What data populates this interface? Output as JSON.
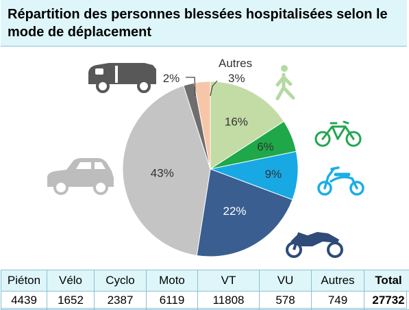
{
  "title": "Répartition des personnes blessées hospitalisées selon le mode de déplacement",
  "chart_data": {
    "type": "pie",
    "start_angle_deg": 0,
    "slices": [
      {
        "category": "Piéton",
        "value": 16,
        "label": "16%",
        "color": "#c3dca5"
      },
      {
        "category": "Vélo",
        "value": 6,
        "label": "6%",
        "color": "#1ea84a"
      },
      {
        "category": "Cyclo",
        "value": 9,
        "label": "9%",
        "color": "#18a8e4"
      },
      {
        "category": "Moto",
        "value": 22,
        "label": "22%",
        "color": "#3a5e8f"
      },
      {
        "category": "VT",
        "value": 43,
        "label": "43%",
        "color": "#c4c4c4"
      },
      {
        "category": "VU",
        "value": 2,
        "label": "2%",
        "color": "#6e6e6e"
      },
      {
        "category": "Autres",
        "value": 3,
        "label": "3%",
        "color": "#f7c6a8"
      }
    ],
    "annotations": {
      "autres_name": "Autres"
    }
  },
  "table": {
    "headers": [
      "Piéton",
      "Vélo",
      "Cyclo",
      "Moto",
      "VT",
      "VU",
      "Autres",
      "Total"
    ],
    "values": [
      "4439",
      "1652",
      "2387",
      "6119",
      "11808",
      "578",
      "749",
      "27732"
    ]
  },
  "icons": [
    "van-icon",
    "pedestrian-icon",
    "bicycle-icon",
    "moped-icon",
    "car-icon",
    "motorcycle-icon"
  ],
  "icon_colors": {
    "van": "#585858",
    "car": "#bdbdbd",
    "pedestrian": "#b4d9a2",
    "bicycle": "#22a550",
    "moped": "#1aaee6",
    "motorcycle": "#2f4b78"
  }
}
